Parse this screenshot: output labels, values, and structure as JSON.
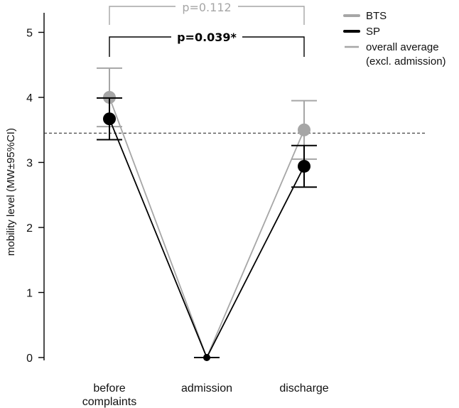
{
  "chart_data": {
    "type": "line",
    "title": "",
    "xlabel": "",
    "ylabel": "mobility level (MW±95%CI)",
    "ylim": [
      0,
      5
    ],
    "yticks": [
      "0",
      "1",
      "2",
      "3",
      "4",
      "5"
    ],
    "categories": [
      [
        "before",
        "complaints"
      ],
      [
        "admission"
      ],
      [
        "discharge"
      ]
    ],
    "series": [
      {
        "name": "BTS",
        "color": "#a6a6a6",
        "values": [
          4.0,
          0.0,
          3.5
        ],
        "ci_low": [
          3.55,
          0.0,
          3.05
        ],
        "ci_high": [
          4.45,
          0.0,
          3.95
        ]
      },
      {
        "name": "SP",
        "color": "#000000",
        "values": [
          3.67,
          0.0,
          2.94
        ],
        "ci_low": [
          3.35,
          0.0,
          2.62
        ],
        "ci_high": [
          3.99,
          0.0,
          3.26
        ]
      }
    ],
    "reference_line": {
      "name": "overall average (excl. admission)",
      "legend_lines": [
        "overall average",
        "(excl. admission)"
      ],
      "value": 3.45,
      "color": "#a6a6a6",
      "style": "dashed"
    },
    "annotations": [
      {
        "text": "p=0.112",
        "from": 0,
        "to": 2,
        "color": "#a6a6a6",
        "level": "top"
      },
      {
        "text": "p=0.039*",
        "from": 0,
        "to": 2,
        "color": "#000000",
        "level": "lower"
      }
    ],
    "legend_position": "top-right",
    "grid": false
  }
}
